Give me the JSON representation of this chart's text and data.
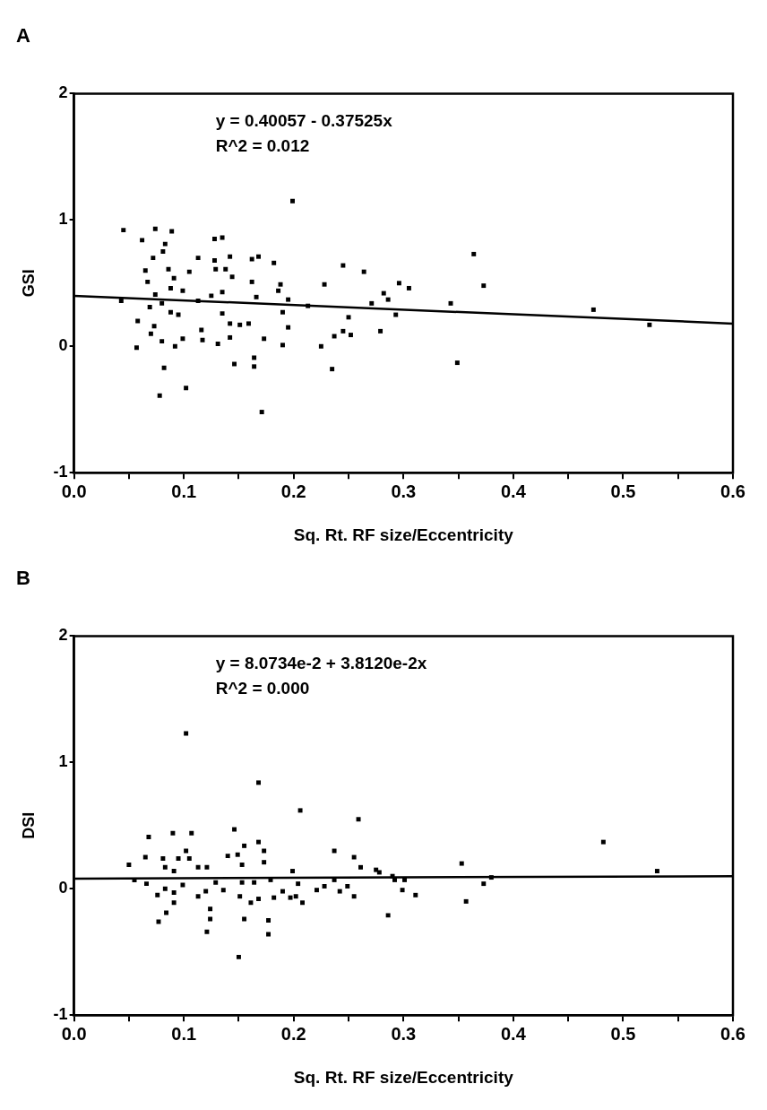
{
  "chart_data": [
    {
      "type": "scatter",
      "title": "A",
      "xlabel": "Sq. Rt. RF size/Eccentricity",
      "ylabel": "GSI",
      "annotations": [
        "y = 0.40057 - 0.37525x",
        "R^2 = 0.012"
      ],
      "xlim": [
        0,
        0.6
      ],
      "ylim": [
        -1,
        2
      ],
      "xticks": [
        {
          "value": 0,
          "label": "0.0"
        },
        {
          "value": 0.05,
          "label": null
        },
        {
          "value": 0.1,
          "label": "0.1"
        },
        {
          "value": 0.15,
          "label": null
        },
        {
          "value": 0.2,
          "label": "0.2"
        },
        {
          "value": 0.25,
          "label": null
        },
        {
          "value": 0.3,
          "label": "0.3"
        },
        {
          "value": 0.35,
          "label": null
        },
        {
          "value": 0.4,
          "label": "0.4"
        },
        {
          "value": 0.45,
          "label": null
        },
        {
          "value": 0.5,
          "label": "0.5"
        },
        {
          "value": 0.55,
          "label": null
        },
        {
          "value": 0.6,
          "label": "0.6"
        }
      ],
      "yticks": [
        -1,
        0,
        1,
        2
      ],
      "grid": false,
      "legend": false,
      "marker": "square",
      "series": [
        {
          "color": "#000000",
          "x": [
            0.045,
            0.062,
            0.074,
            0.089,
            0.083,
            0.081,
            0.072,
            0.065,
            0.067,
            0.086,
            0.091,
            0.088,
            0.099,
            0.105,
            0.113,
            0.074,
            0.069,
            0.08,
            0.043,
            0.058,
            0.073,
            0.07,
            0.088,
            0.095,
            0.057,
            0.08,
            0.092,
            0.099,
            0.082,
            0.102,
            0.078,
            0.113,
            0.125,
            0.135,
            0.116,
            0.117,
            0.131,
            0.135,
            0.142,
            0.142,
            0.151,
            0.159,
            0.173,
            0.146,
            0.164,
            0.164,
            0.171,
            0.128,
            0.135,
            0.128,
            0.142,
            0.129,
            0.138,
            0.144,
            0.162,
            0.168,
            0.182,
            0.162,
            0.188,
            0.186,
            0.166,
            0.195,
            0.19,
            0.195,
            0.19,
            0.213,
            0.228,
            0.225,
            0.199,
            0.235,
            0.237,
            0.245,
            0.264,
            0.25,
            0.245,
            0.252,
            0.271,
            0.282,
            0.286,
            0.296,
            0.305,
            0.293,
            0.279,
            0.343,
            0.349,
            0.364,
            0.373,
            0.473,
            0.524
          ],
          "values": [
            0.92,
            0.84,
            0.93,
            0.91,
            0.81,
            0.75,
            0.7,
            0.6,
            0.51,
            0.61,
            0.54,
            0.46,
            0.44,
            0.59,
            0.7,
            0.41,
            0.31,
            0.34,
            0.36,
            0.2,
            0.16,
            0.1,
            0.27,
            0.25,
            -0.01,
            0.04,
            0,
            0.06,
            -0.17,
            -0.33,
            -0.39,
            0.36,
            0.4,
            0.43,
            0.13,
            0.05,
            0.02,
            0.26,
            0.18,
            0.07,
            0.17,
            0.18,
            0.06,
            -0.14,
            -0.09,
            -0.16,
            -0.52,
            0.85,
            0.86,
            0.68,
            0.71,
            0.61,
            0.61,
            0.55,
            0.69,
            0.71,
            0.66,
            0.51,
            0.49,
            0.44,
            0.39,
            0.37,
            0.27,
            0.15,
            0.01,
            0.32,
            0.49,
            0,
            1.15,
            -0.18,
            0.08,
            0.64,
            0.59,
            0.23,
            0.12,
            0.09,
            0.34,
            0.42,
            0.37,
            0.5,
            0.46,
            0.25,
            0.12,
            0.34,
            -0.13,
            0.73,
            0.48,
            0.29,
            0.17
          ]
        },
        {
          "type": "line",
          "color": "#000000",
          "marker": "none",
          "x": [
            0,
            0.6
          ],
          "values": [
            0.4,
            0.18
          ]
        }
      ]
    },
    {
      "type": "scatter",
      "title": "B",
      "xlabel": "Sq. Rt. RF size/Eccentricity",
      "ylabel": "DSI",
      "annotations": [
        "y = 8.0734e-2 + 3.8120e-2x",
        "R^2 = 0.000"
      ],
      "xlim": [
        0,
        0.6
      ],
      "ylim": [
        -1,
        2
      ],
      "xticks": [
        {
          "value": 0,
          "label": "0.0"
        },
        {
          "value": 0.05,
          "label": null
        },
        {
          "value": 0.1,
          "label": "0.1"
        },
        {
          "value": 0.15,
          "label": null
        },
        {
          "value": 0.2,
          "label": "0.2"
        },
        {
          "value": 0.25,
          "label": null
        },
        {
          "value": 0.3,
          "label": "0.3"
        },
        {
          "value": 0.35,
          "label": null
        },
        {
          "value": 0.4,
          "label": "0.4"
        },
        {
          "value": 0.45,
          "label": null
        },
        {
          "value": 0.5,
          "label": "0.5"
        },
        {
          "value": 0.55,
          "label": null
        },
        {
          "value": 0.6,
          "label": "0.6"
        }
      ],
      "yticks": [
        -1,
        0,
        1,
        2
      ],
      "grid": false,
      "legend": false,
      "marker": "square",
      "series": [
        {
          "color": "#000000",
          "x": [
            0.102,
            0.168,
            0.206,
            0.068,
            0.09,
            0.107,
            0.146,
            0.237,
            0.05,
            0.065,
            0.081,
            0.095,
            0.102,
            0.105,
            0.113,
            0.121,
            0.14,
            0.149,
            0.155,
            0.153,
            0.168,
            0.173,
            0.173,
            0.199,
            0.083,
            0.259,
            0.255,
            0.261,
            0.275,
            0.29,
            0.055,
            0.066,
            0.077,
            0.084,
            0.076,
            0.083,
            0.091,
            0.091,
            0.091,
            0.099,
            0.113,
            0.12,
            0.124,
            0.124,
            0.121,
            0.129,
            0.136,
            0.151,
            0.153,
            0.155,
            0.15,
            0.161,
            0.168,
            0.164,
            0.177,
            0.177,
            0.182,
            0.179,
            0.19,
            0.204,
            0.197,
            0.202,
            0.208,
            0.221,
            0.228,
            0.237,
            0.242,
            0.249,
            0.255,
            0.278,
            0.286,
            0.292,
            0.299,
            0.311,
            0.301,
            0.353,
            0.357,
            0.373,
            0.38,
            0.482,
            0.531
          ],
          "values": [
            1.23,
            0.84,
            0.62,
            0.41,
            0.44,
            0.44,
            0.47,
            0.3,
            0.19,
            0.25,
            0.24,
            0.24,
            0.3,
            0.24,
            0.17,
            0.17,
            0.26,
            0.27,
            0.34,
            0.19,
            0.37,
            0.3,
            0.21,
            0.14,
            0.17,
            0.55,
            0.25,
            0.17,
            0.15,
            0.1,
            0.07,
            0.04,
            -0.26,
            -0.19,
            -0.05,
            0,
            -0.11,
            -0.03,
            0.14,
            0.03,
            -0.06,
            -0.02,
            -0.16,
            -0.24,
            -0.34,
            0.05,
            -0.01,
            -0.06,
            0.05,
            -0.24,
            -0.54,
            -0.11,
            -0.08,
            0.05,
            -0.25,
            -0.36,
            -0.07,
            0.07,
            -0.02,
            0.04,
            -0.07,
            -0.06,
            -0.11,
            -0.01,
            0.02,
            0.07,
            -0.02,
            0.02,
            -0.06,
            0.13,
            -0.21,
            0.07,
            -0.01,
            -0.05,
            0.07,
            0.2,
            -0.1,
            0.04,
            0.09,
            0.37,
            0.14
          ]
        },
        {
          "type": "line",
          "color": "#000000",
          "marker": "none",
          "x": [
            0,
            0.6
          ],
          "values": [
            0.08,
            0.1
          ]
        }
      ]
    }
  ]
}
